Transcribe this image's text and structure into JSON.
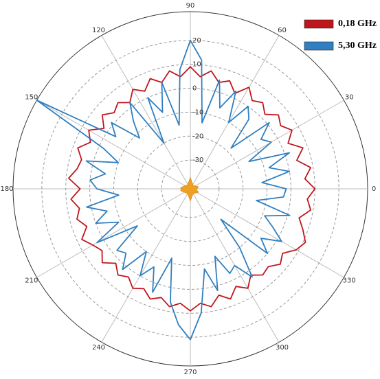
{
  "chart_data": {
    "type": "polar",
    "x": [
      0,
      5,
      10,
      15,
      20,
      25,
      30,
      35,
      40,
      45,
      50,
      55,
      60,
      65,
      70,
      75,
      80,
      85,
      90,
      95,
      100,
      105,
      110,
      115,
      120,
      125,
      130,
      135,
      140,
      145,
      150,
      155,
      160,
      165,
      170,
      175,
      180,
      185,
      190,
      195,
      200,
      205,
      210,
      215,
      220,
      225,
      230,
      235,
      240,
      245,
      250,
      255,
      260,
      265,
      270,
      275,
      280,
      285,
      290,
      295,
      300,
      305,
      310,
      315,
      320,
      325,
      330,
      335,
      340,
      345,
      350,
      355
    ],
    "series": [
      {
        "name": "0,18 GHz",
        "color": "#c0151c",
        "values": [
          10,
          6,
          9,
          4,
          8,
          3,
          7,
          4,
          6,
          2,
          5,
          3,
          7,
          2,
          6,
          4,
          8,
          5,
          9,
          5,
          8,
          4,
          7,
          3,
          6,
          2,
          5,
          3,
          6,
          2,
          7,
          4,
          8,
          5,
          6,
          9,
          4,
          8,
          5,
          7,
          4,
          8,
          5,
          3,
          6,
          2,
          5,
          3,
          6,
          4,
          7,
          5,
          8,
          6,
          9,
          6,
          8,
          4,
          7,
          3,
          6,
          2,
          5,
          4,
          7,
          5,
          9,
          11,
          8,
          5,
          9,
          7
        ]
      },
      {
        "name": "5,30 GHz",
        "color": "#2f7fc1",
        "values": [
          -2,
          -12,
          0,
          -8,
          2,
          -15,
          -3,
          -6,
          1,
          -18,
          -4,
          0,
          -10,
          3,
          -6,
          5,
          -14,
          12,
          20,
          8,
          -15,
          4,
          -8,
          0,
          -20,
          2,
          -5,
          -12,
          1,
          -4,
          32,
          -2,
          -10,
          3,
          -6,
          0,
          -3,
          -12,
          2,
          -6,
          0,
          -9,
          3,
          -15,
          -2,
          -4,
          2,
          -10,
          0,
          -6,
          4,
          -12,
          6,
          15,
          21,
          10,
          -8,
          2,
          -12,
          -3,
          -5,
          3,
          -10,
          -24,
          0,
          -6,
          2,
          -4,
          -9,
          1,
          -14,
          -3
        ]
      }
    ],
    "rlim": [
      -42,
      32
    ],
    "rticks": [
      -30,
      -20,
      -10,
      0,
      10,
      20
    ],
    "thetaticks": [
      0,
      30,
      60,
      90,
      120,
      150,
      180,
      210,
      240,
      270,
      300,
      330
    ],
    "grid": true
  }
}
